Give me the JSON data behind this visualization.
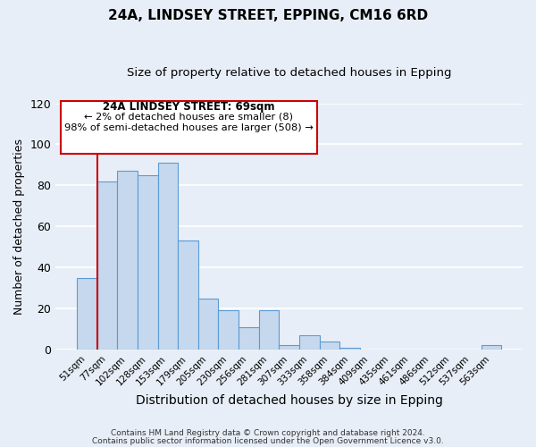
{
  "title": "24A, LINDSEY STREET, EPPING, CM16 6RD",
  "subtitle": "Size of property relative to detached houses in Epping",
  "xlabel": "Distribution of detached houses by size in Epping",
  "ylabel": "Number of detached properties",
  "footer_line1": "Contains HM Land Registry data © Crown copyright and database right 2024.",
  "footer_line2": "Contains public sector information licensed under the Open Government Licence v3.0.",
  "bar_labels": [
    "51sqm",
    "77sqm",
    "102sqm",
    "128sqm",
    "153sqm",
    "179sqm",
    "205sqm",
    "230sqm",
    "256sqm",
    "281sqm",
    "307sqm",
    "333sqm",
    "358sqm",
    "384sqm",
    "409sqm",
    "435sqm",
    "461sqm",
    "486sqm",
    "512sqm",
    "537sqm",
    "563sqm"
  ],
  "bar_values": [
    35,
    82,
    87,
    85,
    91,
    53,
    25,
    19,
    11,
    19,
    2,
    7,
    4,
    1,
    0,
    0,
    0,
    0,
    0,
    0,
    2
  ],
  "bar_color": "#c5d8ed",
  "bar_edge_color": "#5b9bd5",
  "annotation_title": "24A LINDSEY STREET: 69sqm",
  "annotation_line2": "← 2% of detached houses are smaller (8)",
  "annotation_line3": "98% of semi-detached houses are larger (508) →",
  "annotation_box_color": "#ffffff",
  "annotation_box_edge": "#cc0000",
  "vline_color": "#cc0000",
  "vline_x": 0.5,
  "ylim": [
    0,
    120
  ],
  "yticks": [
    0,
    20,
    40,
    60,
    80,
    100,
    120
  ],
  "background_color": "#e8eef7",
  "grid_color": "#ffffff"
}
